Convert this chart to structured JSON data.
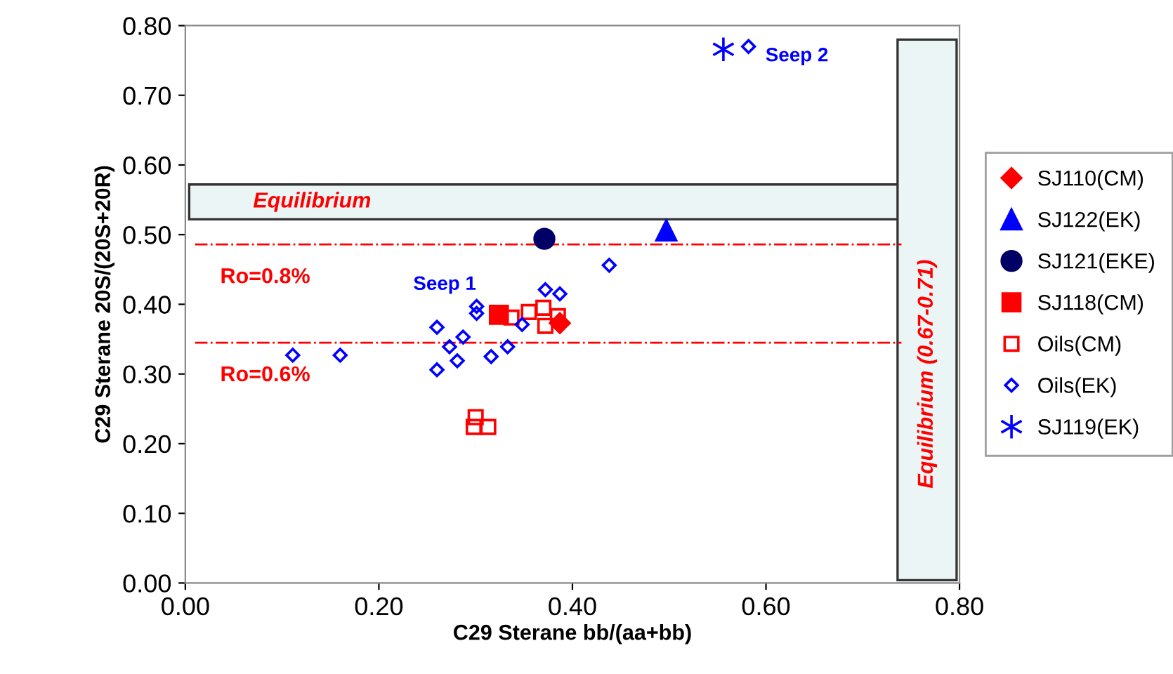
{
  "chart_data": {
    "type": "scatter",
    "xlabel": "C29 Sterane bb/(aa+bb)",
    "ylabel": "C29 Sterane 20S/(20S+20R)",
    "xlim": [
      0,
      0.8
    ],
    "ylim": [
      0,
      0.8
    ],
    "xticks": [
      {
        "value": 0,
        "label": "0.00"
      },
      {
        "value": 0.2,
        "label": "0.20"
      },
      {
        "value": 0.4,
        "label": "0.40"
      },
      {
        "value": 0.6,
        "label": "0.60"
      },
      {
        "value": 0.8,
        "label": "0.80"
      }
    ],
    "yticks": [
      {
        "value": 0,
        "label": "0.00"
      },
      {
        "value": 0.1,
        "label": "0.10"
      },
      {
        "value": 0.2,
        "label": "0.20"
      },
      {
        "value": 0.3,
        "label": "0.30"
      },
      {
        "value": 0.4,
        "label": "0.40"
      },
      {
        "value": 0.5,
        "label": "0.50"
      },
      {
        "value": 0.6,
        "label": "0.60"
      },
      {
        "value": 0.7,
        "label": "0.70"
      },
      {
        "value": 0.8,
        "label": "0.80"
      }
    ],
    "grid": false,
    "legend": "right",
    "series": [
      {
        "name": "SJ110(CM)",
        "color": "#ff0000",
        "marker": "diamond",
        "x": [
          0.387
        ],
        "values": [
          0.373
        ]
      },
      {
        "name": "SJ122(EK)",
        "color": "#0000ff",
        "marker": "triangle",
        "x": [
          0.497
        ],
        "values": [
          0.506
        ]
      },
      {
        "name": "SJ121(EKE)",
        "color": "#000066",
        "marker": "circle",
        "x": [
          0.371
        ],
        "values": [
          0.494
        ]
      },
      {
        "name": "SJ118(CM)",
        "color": "#ff0000",
        "marker": "square",
        "x": [
          0.324
        ],
        "values": [
          0.385
        ]
      },
      {
        "name": "Oils(CM)",
        "color": "#ff0000",
        "marker": "square_open",
        "x": [
          0.337,
          0.355,
          0.37,
          0.385,
          0.372,
          0.3,
          0.298,
          0.313
        ],
        "values": [
          0.381,
          0.389,
          0.395,
          0.383,
          0.369,
          0.238,
          0.224,
          0.224
        ]
      },
      {
        "name": "Oils(EK)",
        "color": "#0000ff",
        "marker": "diamond_open",
        "x": [
          0.111,
          0.16,
          0.26,
          0.273,
          0.281,
          0.26,
          0.287,
          0.301,
          0.301,
          0.316,
          0.333,
          0.348,
          0.372,
          0.387,
          0.438,
          0.582
        ],
        "values": [
          0.327,
          0.327,
          0.367,
          0.339,
          0.319,
          0.306,
          0.353,
          0.397,
          0.387,
          0.325,
          0.339,
          0.371,
          0.421,
          0.415,
          0.456,
          0.77
        ]
      },
      {
        "name": "SJ119(EK)",
        "color": "#0000ff",
        "marker": "cross",
        "x": [
          0.556
        ],
        "values": [
          0.766
        ]
      }
    ],
    "ref_lines": [
      {
        "axis": "y",
        "value": 0.486,
        "color": "#ff0000",
        "line_style": "dashdot"
      },
      {
        "axis": "y",
        "value": 0.345,
        "color": "#ff0000",
        "line_style": "dashdot"
      }
    ],
    "bands": [
      {
        "axis": "y",
        "from": 0.522,
        "to": 0.572,
        "label": "Equilibrium",
        "color": "#ecf5f6"
      },
      {
        "axis": "x",
        "from": 0.736,
        "to": 0.797,
        "label": "Equilibrium (0.67-0.71)",
        "color": "#ecf5f6"
      }
    ],
    "annotations": [
      "Seep 1",
      "Seep 2",
      "Ro=0.8%",
      "Ro=0.6%"
    ]
  }
}
